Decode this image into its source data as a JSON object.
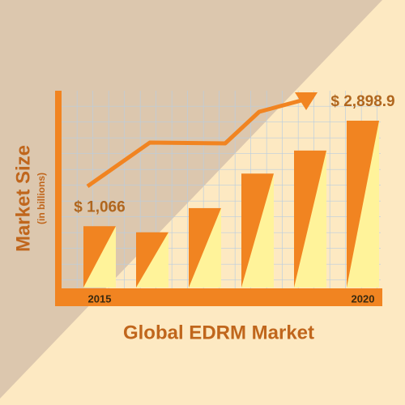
{
  "chart_data": {
    "type": "bar",
    "title": "Global EDRM Market",
    "y_label": "Market Size",
    "y_sublabel": "(in billions)",
    "categories": [
      "2015",
      null,
      null,
      null,
      null,
      "2020"
    ],
    "values": [
      1066,
      960,
      1380,
      1980,
      2380,
      2898.9
    ],
    "value_labels": [
      "$ 1,066",
      null,
      null,
      null,
      null,
      "$ 2,898.9"
    ],
    "color": "#f18421",
    "highlight_color": "#fff39a"
  }
}
